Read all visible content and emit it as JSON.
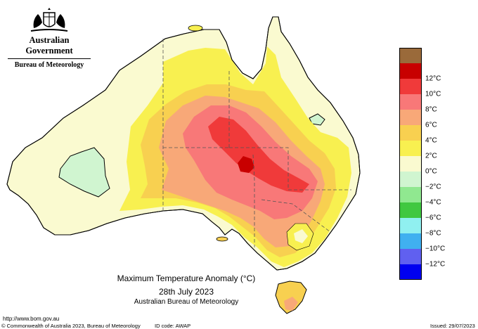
{
  "header": {
    "government": "Australian Government",
    "bureau": "Bureau of Meteorology"
  },
  "legend": {
    "items": [
      {
        "label": "",
        "color": "#9a6a3a"
      },
      {
        "label": "12°C",
        "color": "#c80000"
      },
      {
        "label": "10°C",
        "color": "#f03a3a"
      },
      {
        "label": "8°C",
        "color": "#f87878"
      },
      {
        "label": "6°C",
        "color": "#f8a878"
      },
      {
        "label": "4°C",
        "color": "#f8d050"
      },
      {
        "label": "2°C",
        "color": "#f8f050"
      },
      {
        "label": "0°C",
        "color": "#fafad0"
      },
      {
        "label": "−2°C",
        "color": "#d0f5d0"
      },
      {
        "label": "−4°C",
        "color": "#90e890"
      },
      {
        "label": "−6°C",
        "color": "#40c840"
      },
      {
        "label": "−8°C",
        "color": "#90f0f0"
      },
      {
        "label": "−10°C",
        "color": "#40b0f0"
      },
      {
        "label": "−12°C",
        "color": "#6060f0"
      },
      {
        "label": "",
        "color": "#0000f0"
      }
    ]
  },
  "caption": {
    "title": "Maximum Temperature Anomaly (°C)",
    "date": "28th July 2023",
    "org": "Australian Bureau of Meteorology"
  },
  "footer": {
    "url": "http://www.bom.gov.au",
    "copyright": "© Commonwealth of Australia 2023, Bureau of Meteorology",
    "id_code": "ID code: AWAP",
    "issued": "Issued: 29/07/2023"
  },
  "colors": {
    "land_0_2": "#fafad0",
    "land_2_4": "#f8f050",
    "land_4_6": "#f8d050",
    "land_6_8": "#f8a878",
    "land_8_10": "#f87878",
    "land_10_12": "#f03a3a",
    "land_12_plus": "#c80000",
    "land_neg_2_0": "#d0f5d0"
  }
}
